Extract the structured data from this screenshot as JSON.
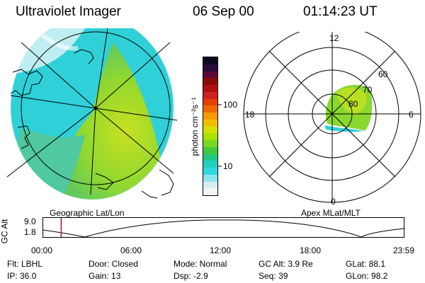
{
  "header": {
    "title": "Ultraviolet Imager",
    "date": "06 Sep 00",
    "time": "01:14:23 UT"
  },
  "colorbar": {
    "label": "photon cm⁻²s⁻¹",
    "ticks": [
      "100",
      "10"
    ],
    "colors": [
      "#0a0a20",
      "#2a0a3a",
      "#5a0a3a",
      "#8a0a0a",
      "#b01010",
      "#d02020",
      "#e04000",
      "#ee6a00",
      "#f59a00",
      "#f0c000",
      "#d8e000",
      "#a8e000",
      "#78d820",
      "#40c840",
      "#20c880",
      "#20d0c0",
      "#30d8e0",
      "#90e4ee",
      "#d8eef2",
      "#f4f4f4"
    ]
  },
  "left_map": {
    "label": "Geographic Lat/Lon"
  },
  "right_map": {
    "label": "Apex MLat/MLT",
    "mlt_labels": {
      "top": "12",
      "left": "18",
      "right": "6",
      "bottom": "0"
    },
    "lat_labels": [
      "60",
      "70",
      "80"
    ]
  },
  "altitude_plot": {
    "ylabel": "GC Alt",
    "yticks": [
      "9.0",
      "1.8"
    ],
    "xticks": [
      "00:00",
      "06:00",
      "12:00",
      "18:00",
      "23:59"
    ],
    "marker_time_hours": 1.24
  },
  "info": {
    "flt": "Flt: LBHL",
    "door": "Door: Closed",
    "mode": "Mode: Normal",
    "gc_alt": "GC Alt: 3.9 Re",
    "glat": "GLat:  88.1",
    "ip": "IP: 36.0",
    "gain": "Gain: 13",
    "dsp": "Dsp:    -2.9",
    "seq": "Seq: 39",
    "glon": "GLon:  98.2"
  }
}
